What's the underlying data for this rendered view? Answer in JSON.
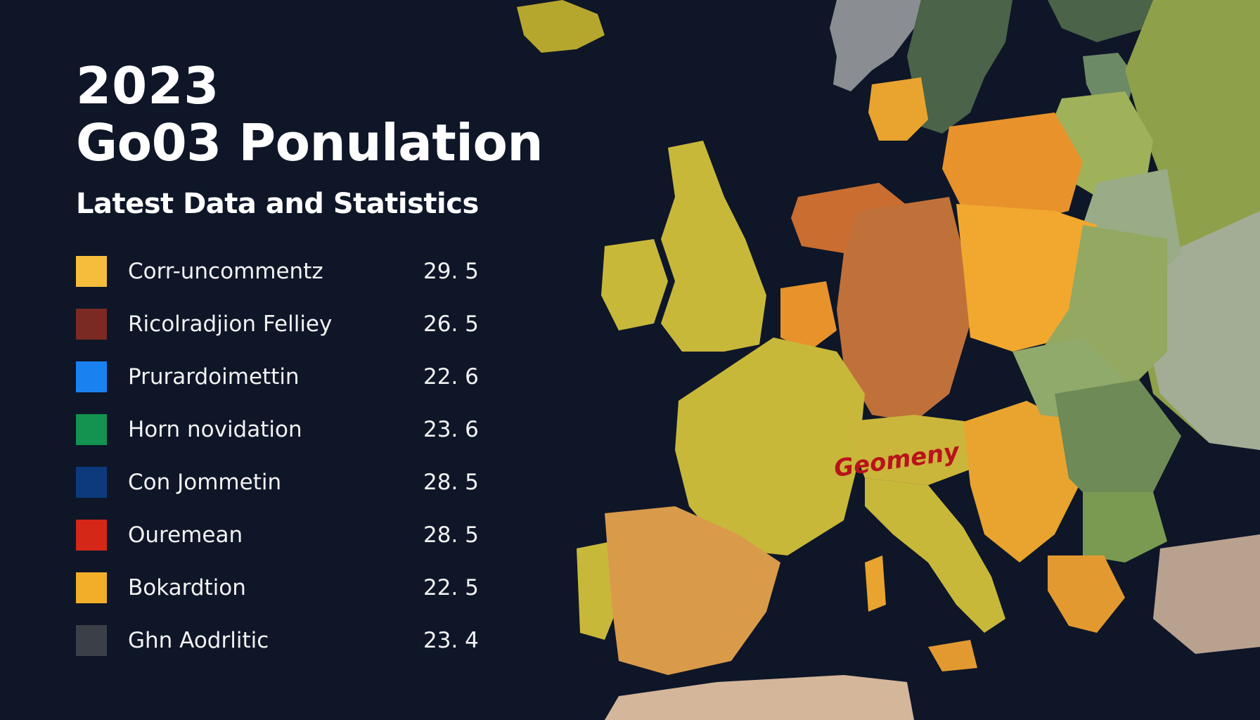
{
  "header": {
    "year": "2023",
    "title": "Go03 Ponulation",
    "subtitle": "Latest Data and Statistics"
  },
  "legend": [
    {
      "label": "Corr-uncommentz",
      "value": "29. 5",
      "color": "#f5bd3b"
    },
    {
      "label": "Ricolradjion Felliey",
      "value": "26. 5",
      "color": "#7a2a22"
    },
    {
      "label": "Prurardoimettin",
      "value": "22. 6",
      "color": "#1a82f0"
    },
    {
      "label": "Horn novidation",
      "value": "23. 6",
      "color": "#13934f"
    },
    {
      "label": "Con Jommetin",
      "value": "28. 5",
      "color": "#0d3a7d"
    },
    {
      "label": "Ouremean",
      "value": "28. 5",
      "color": "#d42718"
    },
    {
      "label": "Bokardtion",
      "value": "22. 5",
      "color": "#f2ae28"
    },
    {
      "label": "Ghn Aodrlitic",
      "value": "23. 4",
      "color": "#3b3f48"
    }
  ],
  "map": {
    "region_label": "Geomeny",
    "region_label_color": "#b8141a",
    "colors": {
      "background": "#0e1628",
      "yellow_green": "#c8b83a",
      "orange": "#e89a2c",
      "rust": "#c0713a",
      "tan": "#d99b4a",
      "green": "#6f8a4a",
      "dark_green": "#4a6349",
      "grey_green": "#a3ad95",
      "grey": "#8a8d92"
    }
  }
}
